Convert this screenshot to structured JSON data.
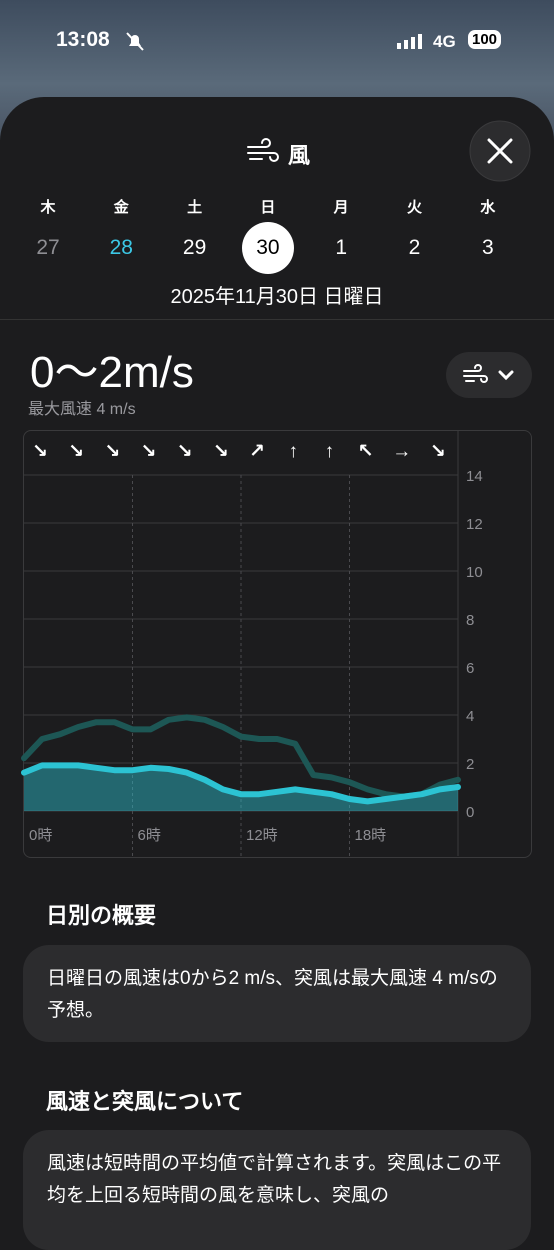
{
  "status_bar": {
    "time": "13:08",
    "network": "4G",
    "battery": "100"
  },
  "header": {
    "title": "風"
  },
  "week": {
    "days": [
      {
        "weekday": "木",
        "date": 27
      },
      {
        "weekday": "金",
        "date": 28
      },
      {
        "weekday": "土",
        "date": 29
      },
      {
        "weekday": "日",
        "date": 30
      },
      {
        "weekday": "月",
        "date": 1
      },
      {
        "weekday": "火",
        "date": 2
      },
      {
        "weekday": "水",
        "date": 3
      }
    ]
  },
  "selected_date": "2025年11月30日 日曜日",
  "summary": {
    "range": "0〜2m/s",
    "max": "最大風速 4 m/s"
  },
  "chart_data": {
    "type": "line",
    "x": [
      0,
      1,
      2,
      3,
      4,
      5,
      6,
      7,
      8,
      9,
      10,
      11,
      12,
      13,
      14,
      15,
      16,
      17,
      18,
      19,
      20,
      21,
      22,
      23,
      24
    ],
    "series": [
      {
        "color": "#2cc3d3",
        "fill": true,
        "values": [
          1.6,
          1.9,
          1.9,
          1.9,
          1.8,
          1.7,
          1.7,
          1.8,
          1.75,
          1.6,
          1.3,
          0.9,
          0.7,
          0.7,
          0.8,
          0.9,
          0.8,
          0.7,
          0.5,
          0.4,
          0.5,
          0.6,
          0.7,
          0.9,
          1.0
        ]
      },
      {
        "color": "#1d5755",
        "values": [
          2.2,
          3.0,
          3.2,
          3.5,
          3.7,
          3.7,
          3.4,
          3.4,
          3.8,
          3.9,
          3.8,
          3.5,
          3.1,
          3.0,
          3.0,
          2.8,
          1.5,
          1.4,
          1.2,
          0.9,
          0.7,
          0.6,
          0.7,
          1.1,
          1.3
        ]
      }
    ],
    "direction_labels": [
      "↘",
      "↘",
      "↘",
      "↘",
      "↘",
      "↘",
      "↗",
      "↑",
      "↑",
      "↖",
      "→",
      "↘"
    ],
    "xlim": [
      0,
      24
    ],
    "xticks": [
      {
        "value": 0,
        "label": "0時"
      },
      {
        "value": 6,
        "label": "6時"
      },
      {
        "value": 12,
        "label": "12時"
      },
      {
        "value": 18,
        "label": "18時"
      }
    ],
    "ylim": [
      0,
      14
    ],
    "yticks": [
      0,
      2,
      4,
      6,
      8,
      10,
      12,
      14
    ],
    "grid": true
  },
  "sections": [
    {
      "title": "日別の概要",
      "text": "日曜日の風速は0から2 m/s、突風は最大風速 4 m/sの予想。"
    },
    {
      "title": "風速と突風について",
      "text": "風速は短時間の平均値で計算されます。突風はこの平均を上回る短時間の風を意味し、突風の"
    }
  ]
}
